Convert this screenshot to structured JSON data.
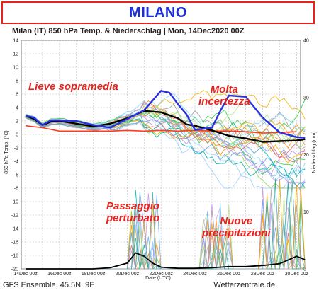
{
  "banner": {
    "title": "MILANO"
  },
  "chart_title": "Milan  (IT)  850 hPa Temp. & Niederschlag | Mon, 14Dec2020 00Z",
  "footer": {
    "left": "GFS Ensemble, 45.5N, 9E",
    "right": "Wetterzentrale.de"
  },
  "annotations": [
    {
      "text": "Lieve sopramedia"
    },
    {
      "text": "Molta\nincertezza"
    },
    {
      "text": "Passaggio\nperturbato"
    },
    {
      "text": "Nuove\nprecipitazioni"
    }
  ],
  "chart_data": {
    "type": "line",
    "xlabel": "Date (UTC)",
    "ylabel": "850 hPa Temp. (°C)",
    "y2label": "Niederschlag (mm)",
    "x_range": [
      "14Dec 00z",
      "30Dec 12z"
    ],
    "x_ticks": [
      "14Dec 00z",
      "16Dec 00z",
      "18Dec 00z",
      "20Dec 00z",
      "22Dec 00z",
      "24Dec 00z",
      "26Dec 00z",
      "28Dec 00z",
      "30Dec 00z"
    ],
    "ylim": [
      -20,
      14
    ],
    "y_ticks": [
      14,
      12,
      10,
      8,
      6,
      4,
      2,
      0,
      -2,
      -4,
      -6,
      -8,
      -10,
      -12,
      -14,
      -16,
      -18,
      -20
    ],
    "y2lim": [
      0,
      40
    ],
    "y2_ticks": [
      40,
      30,
      20,
      10,
      0
    ],
    "grid": true,
    "colors": {
      "mean": "#000000",
      "operational": "#2a2fe0",
      "climatology": "#ff3b1f",
      "members": [
        "#2ecc40",
        "#8fd14f",
        "#f4b400",
        "#ff8a00",
        "#9ecbff",
        "#5aa0e8",
        "#c98ee6",
        "#00b3a4",
        "#a0a0a0",
        "#e06666",
        "#7bd7ff",
        "#b6e388"
      ]
    },
    "series": [
      {
        "role": "climatology",
        "x": [
          0,
          1,
          2,
          3,
          4,
          5,
          6,
          7,
          8,
          9,
          10,
          11,
          12,
          13,
          14,
          15,
          16
        ],
        "values": [
          1.3,
          1.0,
          0.5,
          0.5,
          0.5,
          0.5,
          0.6,
          0.5,
          0.6,
          0.5,
          0.6,
          0.5,
          0.5,
          0.4,
          0.2,
          0.3,
          0.4
        ]
      },
      {
        "role": "mean",
        "x": [
          0,
          0.5,
          1,
          1.5,
          2,
          3,
          4,
          5,
          6,
          7,
          8,
          9,
          9.5,
          10,
          11,
          12,
          13,
          14,
          15,
          16,
          16.5
        ],
        "values": [
          2.8,
          2.3,
          1.4,
          1.9,
          2.0,
          1.6,
          1.2,
          1.6,
          2.4,
          3.5,
          3.3,
          2.4,
          1.5,
          1.3,
          0.6,
          -0.2,
          -0.6,
          -1.1,
          -1.0,
          -0.9,
          -0.7
        ]
      },
      {
        "role": "operational",
        "x": [
          0,
          0.5,
          1,
          1.5,
          2,
          3,
          4,
          5,
          6,
          7,
          8,
          8.5,
          9,
          9.5,
          10,
          11,
          11.5,
          12,
          13,
          14,
          15,
          16,
          16.5
        ],
        "values": [
          2.8,
          2.5,
          1.4,
          2.1,
          2.1,
          2.0,
          1.4,
          1.0,
          2.3,
          3.6,
          6.5,
          6.2,
          4.5,
          3.0,
          0.7,
          1.0,
          3.5,
          5.8,
          5.6,
          2.5,
          0.3,
          -0.4,
          -0.5
        ]
      },
      {
        "role": "precipitation_mean",
        "axis": "y2",
        "x": [
          0,
          1,
          2,
          3,
          4,
          5,
          6,
          6.5,
          7,
          7.5,
          8,
          9,
          10,
          11,
          12,
          13,
          14,
          15,
          16,
          16.5
        ],
        "values": [
          0,
          0,
          0,
          0,
          0,
          0.2,
          1.0,
          2.8,
          2.2,
          1.0,
          0.3,
          0.1,
          0.1,
          0.2,
          0.4,
          0.4,
          0.6,
          0.9,
          2.2,
          1.6
        ]
      }
    ]
  }
}
